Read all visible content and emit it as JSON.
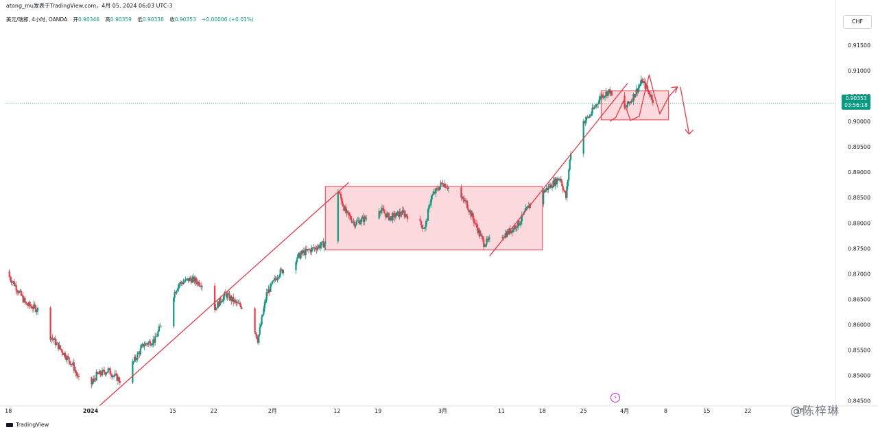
{
  "header": {
    "published": "atong_mu发表于TradingView.com，4月 05, 2024 06:03 UTC-3"
  },
  "symbol_bar": {
    "name": "美元/瑞郎, 4小时, OANDA",
    "open_label": "开",
    "open": "0.90346",
    "high_label": "高",
    "high": "0.90359",
    "low_label": "低",
    "low": "0.90336",
    "close_label": "收",
    "close": "0.90353",
    "change": "+0.00006 (+0.01%)"
  },
  "currency_button": "CHF",
  "last_price": {
    "price": "0.90353",
    "countdown": "03:56:18"
  },
  "footer": {
    "brand": "TradingView"
  },
  "watermark": "@陈梓琳",
  "colors": {
    "up": "#089981",
    "down": "#f23645",
    "box_fill": "#f7b9bf",
    "box_stroke": "#f23645",
    "trendline": "#f23645"
  },
  "chart_data": {
    "type": "candlestick",
    "title": "",
    "y_ticks": [
      "0.91500",
      "0.91000",
      "0.90500",
      "0.90000",
      "0.89500",
      "0.89000",
      "0.88500",
      "0.88000",
      "0.87500",
      "0.87000",
      "0.86500",
      "0.86000",
      "0.85500",
      "0.85000",
      "0.84500"
    ],
    "ylim": [
      0.844,
      0.9185
    ],
    "x_ticks": [
      "18",
      "2024",
      "15",
      "22",
      "2月",
      "12",
      "19",
      "3月",
      "11",
      "18",
      "25",
      "4月",
      "8",
      "15",
      "22",
      "5月"
    ],
    "x_tick_days": [
      -14,
      0,
      14,
      21,
      31,
      42,
      49,
      60,
      70,
      77,
      84,
      91,
      98,
      105,
      112,
      121
    ],
    "xlim": [
      -14.5,
      126
    ],
    "price_path": [
      [
        -14.5,
        0.8705
      ],
      [
        -13,
        0.868
      ],
      [
        -11,
        0.864
      ],
      [
        -9,
        0.863
      ],
      [
        -7,
        0.858
      ],
      [
        -5,
        0.855
      ],
      [
        -3,
        0.852
      ],
      [
        -1,
        0.846
      ],
      [
        1,
        0.85
      ],
      [
        3,
        0.851
      ],
      [
        5,
        0.849
      ],
      [
        7,
        0.852
      ],
      [
        9,
        0.856
      ],
      [
        11,
        0.857
      ],
      [
        13,
        0.863
      ],
      [
        15,
        0.868
      ],
      [
        17,
        0.869
      ],
      [
        19,
        0.868
      ],
      [
        21,
        0.863
      ],
      [
        23,
        0.866
      ],
      [
        25,
        0.864
      ],
      [
        27,
        0.863
      ],
      [
        28.5,
        0.857
      ],
      [
        30,
        0.866
      ],
      [
        32,
        0.87
      ],
      [
        34,
        0.872
      ],
      [
        36,
        0.874
      ],
      [
        38,
        0.875
      ],
      [
        40,
        0.876
      ],
      [
        41,
        0.886
      ],
      [
        42,
        0.887
      ],
      [
        43.5,
        0.882
      ],
      [
        45,
        0.88
      ],
      [
        47,
        0.881
      ],
      [
        49,
        0.883
      ],
      [
        51,
        0.881
      ],
      [
        53,
        0.882
      ],
      [
        55,
        0.881
      ],
      [
        57,
        0.879
      ],
      [
        58,
        0.885
      ],
      [
        60,
        0.888
      ],
      [
        62,
        0.886
      ],
      [
        64,
        0.884
      ],
      [
        65.5,
        0.88
      ],
      [
        67,
        0.876
      ],
      [
        69,
        0.877
      ],
      [
        71,
        0.878
      ],
      [
        73,
        0.88
      ],
      [
        75,
        0.884
      ],
      [
        77,
        0.886
      ],
      [
        79,
        0.888
      ],
      [
        80,
        0.889
      ],
      [
        81,
        0.885
      ],
      [
        82,
        0.896
      ],
      [
        83,
        0.899
      ],
      [
        85,
        0.901
      ],
      [
        87,
        0.905
      ],
      [
        88.5,
        0.906
      ],
      [
        90,
        0.901
      ],
      [
        92,
        0.904
      ],
      [
        94,
        0.908
      ],
      [
        95.5,
        0.905
      ],
      [
        97,
        0.902
      ],
      [
        98,
        0.9035
      ]
    ],
    "annotations": {
      "boxes": [
        {
          "x0": 40,
          "x1": 77,
          "y0": 0.8747,
          "y1": 0.8872,
          "label": ""
        },
        {
          "x0": 87,
          "x1": 98.5,
          "y0": 0.9003,
          "y1": 0.906,
          "label": ""
        }
      ],
      "trendlines": [
        [
          [
            1.5,
            0.844
          ],
          [
            44,
            0.888
          ]
        ],
        [
          [
            68,
            0.8735
          ],
          [
            91.5,
            0.9075
          ]
        ]
      ],
      "paths": [
        [
          [
            88.5,
            0.9
          ],
          [
            89.5,
            0.9008
          ],
          [
            90.8,
            0.904
          ],
          [
            92,
            0.9002
          ],
          [
            93.5,
            0.901
          ],
          [
            94.5,
            0.906
          ],
          [
            95.2,
            0.9092
          ],
          [
            96,
            0.9055
          ],
          [
            97,
            0.9015
          ],
          [
            98.5,
            0.9048
          ],
          [
            100,
            0.9068
          ]
        ]
      ],
      "down_arrow": [
        [
          100.5,
          0.9068
        ],
        [
          102,
          0.8975
        ]
      ],
      "current_price_line": 0.90353
    }
  }
}
